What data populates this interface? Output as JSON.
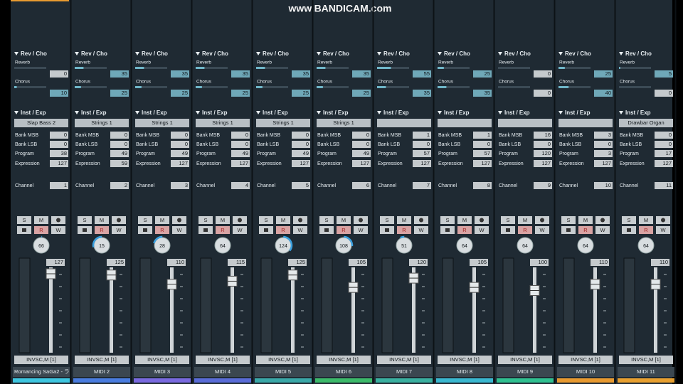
{
  "watermark": "www.BANDICAM.com",
  "labels": {
    "rev_cho": "Rev / Cho",
    "reverb": "Reverb",
    "chorus": "Chorus",
    "inst_exp": "Inst / Exp",
    "bank_msb": "Bank MSB",
    "bank_lsb": "Bank LSB",
    "program": "Program",
    "expression": "Expression",
    "channel": "Channel",
    "solo": "S",
    "mute": "M",
    "read": "R",
    "write": "W"
  },
  "strips": [
    {
      "name": "Romancing SaGa2 - ラ",
      "output": "INVSC,M [1]",
      "reverb": 0,
      "chorus": 10,
      "instrument": "Slap Bass 2",
      "bank_msb": 0,
      "bank_lsb": 0,
      "program": 38,
      "expression": 127,
      "channel": 1,
      "pan": 66,
      "volume": 127,
      "color": "#3ec6e0"
    },
    {
      "name": "MIDI 2",
      "output": "INVSC,M [1]",
      "reverb": 35,
      "chorus": 25,
      "instrument": "Strings 1",
      "bank_msb": 0,
      "bank_lsb": 0,
      "program": 49,
      "expression": 59,
      "channel": 2,
      "pan": 15,
      "volume": 125,
      "color": "#4a7de0"
    },
    {
      "name": "MIDI 3",
      "output": "INVSC,M [1]",
      "reverb": 35,
      "chorus": 25,
      "instrument": "Strings 1",
      "bank_msb": 0,
      "bank_lsb": 0,
      "program": 49,
      "expression": 127,
      "channel": 3,
      "pan": 28,
      "volume": 110,
      "color": "#7a6ae0"
    },
    {
      "name": "MIDI 4",
      "output": "INVSC,M [1]",
      "reverb": 35,
      "chorus": 25,
      "instrument": "Strings 1",
      "bank_msb": 0,
      "bank_lsb": 0,
      "program": 49,
      "expression": 127,
      "channel": 4,
      "pan": 64,
      "volume": 115,
      "color": "#5a6cd8"
    },
    {
      "name": "MIDI 5",
      "output": "INVSC,M [1]",
      "reverb": 35,
      "chorus": 25,
      "instrument": "Strings 1",
      "bank_msb": 0,
      "bank_lsb": 0,
      "program": 49,
      "expression": 127,
      "channel": 5,
      "pan": 124,
      "volume": 125,
      "color": "#3aa8a8"
    },
    {
      "name": "MIDI 6",
      "output": "INVSC,M [1]",
      "reverb": 35,
      "chorus": 25,
      "instrument": "Strings 1",
      "bank_msb": 0,
      "bank_lsb": 0,
      "program": 49,
      "expression": 127,
      "channel": 6,
      "pan": 108,
      "volume": 105,
      "color": "#3cba6a"
    },
    {
      "name": "MIDI 7",
      "output": "INVSC,M [1]",
      "reverb": 55,
      "chorus": 35,
      "instrument": null,
      "bank_msb": 1,
      "bank_lsb": 0,
      "program": 57,
      "expression": 127,
      "channel": 7,
      "pan": 51,
      "volume": 120,
      "color": "#3ab0a0"
    },
    {
      "name": "MIDI 8",
      "output": "INVSC,M [1]",
      "reverb": 25,
      "chorus": 35,
      "instrument": null,
      "bank_msb": 1,
      "bank_lsb": 0,
      "program": 57,
      "expression": 127,
      "channel": 8,
      "pan": 64,
      "volume": 105,
      "color": "#3ab8d0"
    },
    {
      "name": "MIDI 9",
      "output": "INVSC,M [1]",
      "reverb": 0,
      "chorus": 0,
      "instrument": null,
      "bank_msb": 16,
      "bank_lsb": 0,
      "program": 120,
      "expression": 127,
      "channel": 9,
      "pan": 64,
      "volume": 100,
      "color": "#30c090"
    },
    {
      "name": "MIDI 10",
      "output": "INVSC,M [1]",
      "reverb": 25,
      "chorus": 40,
      "instrument": null,
      "bank_msb": 3,
      "bank_lsb": 0,
      "program": 3,
      "expression": 127,
      "channel": 10,
      "pan": 64,
      "volume": 110,
      "color": "#e89a30"
    },
    {
      "name": "MIDI 11",
      "output": "INVSC,M [1]",
      "reverb": 5,
      "chorus": 0,
      "instrument": "Drawbar Organ",
      "bank_msb": 0,
      "bank_lsb": 0,
      "program": 17,
      "expression": 127,
      "channel": 11,
      "pan": 64,
      "volume": 110,
      "color": "#e8a030"
    }
  ]
}
